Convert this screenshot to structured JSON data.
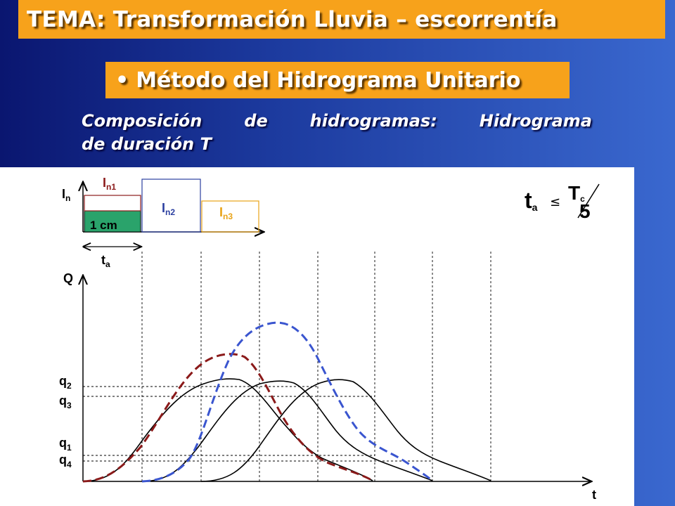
{
  "slide": {
    "title": "TEMA: Transformación Lluvia – escorrentía",
    "subtitle": "Método del Hidrograma Unitario",
    "bullet": "•",
    "heading_line1_words": [
      "Composición",
      "de",
      "hidrogramas:",
      "Hidrograma"
    ],
    "heading_line2": "de duración T"
  },
  "diagram": {
    "hyetograph": {
      "axis_label_main": "I",
      "axis_label_sub": "n",
      "block1_label_main": "I",
      "block1_label_sub": "n1",
      "block1_inner_label": "1 cm",
      "block2_label_main": "I",
      "block2_label_sub": "n2",
      "block3_label_main": "I",
      "block3_label_sub": "n3",
      "duration_label_main": "t",
      "duration_label_sub": "a"
    },
    "formula": {
      "lhs_main": "t",
      "lhs_sub": "a",
      "operator": "≤",
      "numerator_main": "T",
      "numerator_sub": "c",
      "denominator": "5"
    },
    "hydrograph": {
      "y_axis_label": "Q",
      "x_axis_label": "t",
      "levels": [
        {
          "main": "q",
          "sub": "2"
        },
        {
          "main": "q",
          "sub": "3"
        },
        {
          "main": "q",
          "sub": "1"
        },
        {
          "main": "q",
          "sub": "4"
        }
      ]
    },
    "colors": {
      "block1": "#8b1a1a",
      "block1_fill": "#2aa36b",
      "block2": "#2b3fa0",
      "block3": "#e8a317",
      "sum_red": "#8b1a1a",
      "sum_blue": "#3a55cf",
      "unit_curves": "#000000"
    }
  }
}
